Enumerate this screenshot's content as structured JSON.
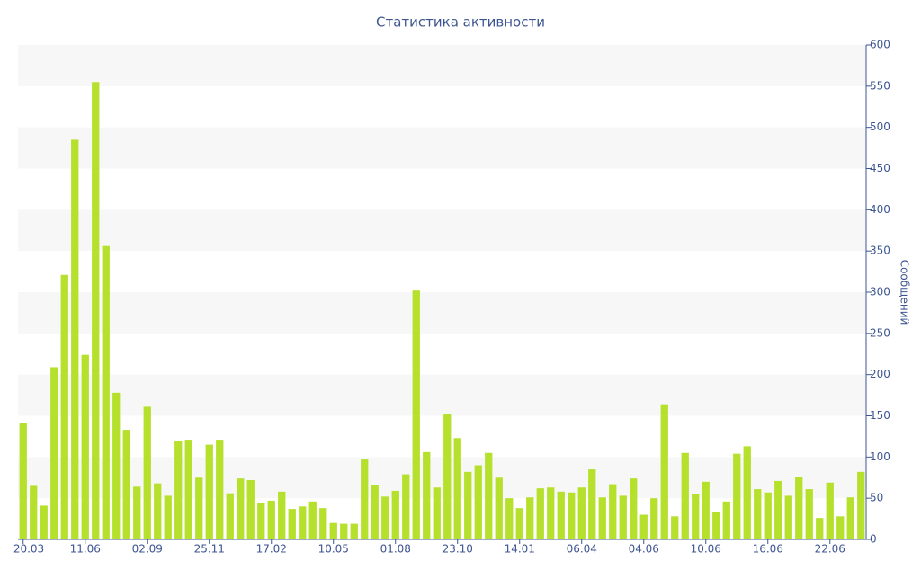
{
  "chart_data": {
    "type": "bar",
    "title": "Статистика активности",
    "y_label": "Сообщений",
    "categories": [
      "20.03",
      null,
      null,
      null,
      null,
      null,
      "11.06",
      null,
      null,
      null,
      null,
      null,
      "02.09",
      null,
      null,
      null,
      null,
      null,
      "25.11",
      null,
      null,
      null,
      null,
      null,
      "17.02",
      null,
      null,
      null,
      null,
      null,
      "10.05",
      null,
      null,
      null,
      null,
      null,
      "01.08",
      null,
      null,
      null,
      null,
      null,
      "23.10",
      null,
      null,
      null,
      null,
      null,
      "14.01",
      null,
      null,
      null,
      null,
      null,
      "06.04",
      null,
      null,
      null,
      null,
      null,
      "04.06",
      null,
      null,
      null,
      null,
      null,
      "10.06",
      null,
      null,
      null,
      null,
      null,
      "16.06",
      null,
      null,
      null,
      null,
      null,
      "22.06",
      null,
      null,
      null
    ],
    "values": [
      141,
      65,
      41,
      209,
      321,
      485,
      224,
      555,
      356,
      178,
      133,
      64,
      161,
      68,
      53,
      119,
      121,
      75,
      115,
      121,
      56,
      74,
      72,
      44,
      47,
      58,
      37,
      40,
      46,
      38,
      20,
      19,
      19,
      97,
      66,
      52,
      59,
      79,
      302,
      106,
      63,
      152,
      123,
      82,
      90,
      105,
      75,
      50,
      38,
      51,
      62,
      63,
      58,
      57,
      63,
      85,
      51,
      67,
      53,
      74,
      30,
      50,
      164,
      28,
      105,
      55,
      70,
      33,
      46,
      104,
      113,
      61,
      57,
      71,
      53,
      76,
      61,
      26,
      69,
      28,
      51,
      82
    ],
    "color": "#b5e02c",
    "ylim": [
      0,
      600
    ],
    "yticks": [
      0,
      50,
      100,
      150,
      200,
      250,
      300,
      350,
      400,
      450,
      500,
      550,
      600
    ],
    "grid": "bands",
    "y_axis_side": "right"
  }
}
